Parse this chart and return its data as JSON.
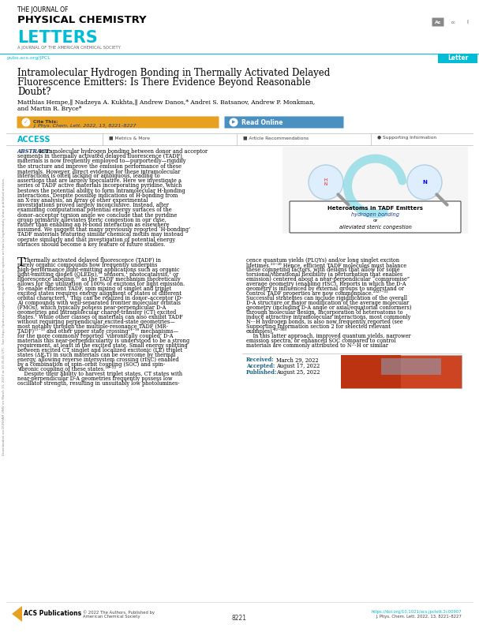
{
  "journal_line1": "THE JOURNAL OF",
  "journal_line2": "PHYSICAL CHEMISTRY",
  "journal_line3": "LETTERS",
  "journal_sub": "A JOURNAL OF THE AMERICAN CHEMICAL SOCIETY",
  "url": "pubs.acs.org/JPCL",
  "letter_tag": "Letter",
  "title_line1": "Intramolecular Hydrogen Bonding in Thermally Activated Delayed",
  "title_line2": "Fluorescence Emitters: Is There Evidence Beyond Reasonable",
  "title_line3": "Doubt?",
  "authors_line1": "Matthias Hempe,‖ Nadzeya A. Kukhta,‖ Andrew Danos,* Andrei S. Batsanov, Andrew P. Monkman,",
  "authors_line2": "and Martin R. Bryce*",
  "cite_label": "Cite This:",
  "cite_text": "J. Phys. Chem. Lett. 2022, 13, 8221–8227",
  "read_online": "Read Online",
  "access_text": "ACCESS",
  "metrics_text": "Metrics & More",
  "article_rec": "Article Recommendations",
  "supporting": "Supporting Information",
  "abstract_bold": "ABSTRACT:",
  "abstract_body": "Intramolecular hydrogen bonding between donor and acceptor segments in thermally activated delayed fluorescence (TADF) materials is now frequently employed to—purportedly—rigidify the structure and improve the emission performance of these materials. However, direct evidence for these intramolecular interactions is often lacking or ambiguous, leading to assertions that are largely speculative. Here we investigate a series of TADF active materials incorporating pyridine, which bestows the potential ability to form intramolecular H-bonding interactions. Despite possible indications of H-bonding from an X-ray analysis, an array of other experimental investigations proved largely inconclusive. Instead, after examining computational potential energy surfaces of the donor–acceptor torsion angle we conclude that the pyridine group primarily alleviates steric congestion in our case, rather than enabling an H-bond interaction as elsewhere assumed. We suggest that many previously reported ‘H-bonding’ TADF materials featuring similar chemical motifs may instead operate similarly and that investigation of potential energy surfaces should become a key feature of future studies.",
  "body_left_lines": [
    "Thermally activated delayed fluorescence (TADF) in",
    "purely organic compounds now frequently underpins",
    "high-performance light-emitting applications such as organic",
    "light-emitting diodes (OLEDs),¹² sensors,¹ photocatalysis,¹ or",
    "fluorescence labeling,¹⁶ as the TADF mechanism theoretically",
    "allows for the utilization of 100% of excitons for light emission.",
    "To enable efficient TADF, spin mixing of singlet and triplet",
    "excited states requires energy alignment of states of different",
    "orbital characters.¹ This can be realized in donor–acceptor (D-",
    "A) compounds with well-separated frontier molecular orbitals",
    "(FMOs), which typically possess near-perpendicular D-A",
    "geometries and intramolecular charge-transfer (CT) excited",
    "states.¹ While other classes of materials can also exhibit TADF",
    "without requiring perpendicular excited-state geometries—",
    "most notably through the multiple-resonance TADF (MR-",
    "TADF)¹¹⁻¹³ and other upper state crossing¹⁴⁻¹⁶ mechanisms—",
    "for the more commonly reported ‘vibronically coupled’ D-A",
    "materials this near-perpendicularity is understood to be a strong",
    "requirement, at least in the excited state. Small energy splitting",
    "between excited CT singlet and localized excitonic (LE) triplet",
    "states (ΔEₛT) in such materials can be overcome by thermal",
    "energy, allowing reverse intersystem crossing (rISC) enabled",
    "by a combination of spin–orbit coupling (SOC) and spin-",
    "vibronic coupling of these states.¹⁶⁻²²",
    "    Despite their ability to harvest triplet states, CT states with",
    "near-perpendicular D-A geometries frequently possess low",
    "oscillator strength, resulting in unsuitably low photolumines-"
  ],
  "body_right_lines": [
    "cence quantum yields (PLQYs) and/or long singlet exciton",
    "lifetimes.²³⁻²⁶ Hence, efficient TADF molecules must balance",
    "these competing factors, with designs that allow for some",
    "torsional/vibrational flexibility (a perturbation that enables",
    "emission) centered about a near-perpendicular “compromise”",
    "average geometry (enabling rISC). Reports in which the D-A",
    "geometry is influenced by external groups to understand or",
    "control TADF properties are now commonplace.²³²⁷⁻³¹",
    "Successful strategies can include rigidification of the overall",
    "D-A structure or major modification of the average molecular",
    "geometry (including D-A angle or axial/equatorial conformers)",
    "through molecular design. Incorporation of heteroatoms to",
    "induce attractive intramolecular interactions, most commonly",
    "N···H hydrogen bonds, is also now frequently reported (see",
    "Supporting Information section 2 for selected relevant",
    "examples).³²⁻³⁶³",
    "    In this latter approach, improved quantum yields, narrower",
    "emission spectra, or enhanced SOC compared to control",
    "materials are commonly attributed to N···H or similar"
  ],
  "received": "Received:",
  "received_date": "March 29, 2022",
  "accepted": "Accepted:",
  "accepted_date": "August 17, 2022",
  "published": "Published:",
  "published_date": "August 25, 2022",
  "footer_copyright": "© 2022 The Authors. Published by\nAmerican Chemical Society",
  "footer_url": "https://doi.org/10.1021/acs.jpclett.2c00907",
  "footer_journal": "J. Phys. Chem. Lett. 2022, 13, 8221–8227",
  "page_num": "8221",
  "sidebar_line1": "Heteroatoms in TADF Emitters",
  "sidebar_line2": "hydrogen bonding",
  "sidebar_line3": "or",
  "sidebar_line4": "alleviated steric congestion",
  "bg_color": "#ffffff",
  "cyan_color": "#00bcd4",
  "letter_bg": "#00bcd4",
  "cite_bg": "#e8a020",
  "read_bg": "#4a90c0",
  "access_color": "#00b4cc",
  "abstract_bold_color": "#1a3a6c",
  "date_color": "#1a6080",
  "title_fontsize": 8.5,
  "authors_fontsize": 5.5,
  "abstract_fontsize": 4.8,
  "body_fontsize": 4.7,
  "small_fontsize": 4.0
}
